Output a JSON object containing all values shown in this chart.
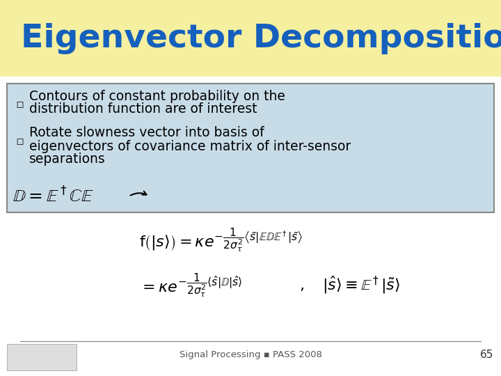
{
  "title": "Eigenvector Decomposition",
  "title_color": "#1560BD",
  "title_bg": "#F5F0A0",
  "bullet_bg": "#C8DCE8",
  "bullet_border": "#888888",
  "bullets": [
    "Contours of constant probability on the\ndistribution function are of interest",
    "Rotate slowness vector into basis of\neigenvectors of covariance matrix of inter-sensor\nseparations"
  ],
  "footer_text": "Signal Processing ▪ PASS 2008",
  "footer_page": "65",
  "bg_color": "#FFFFFF",
  "slide_bg": "#FFFFFF"
}
